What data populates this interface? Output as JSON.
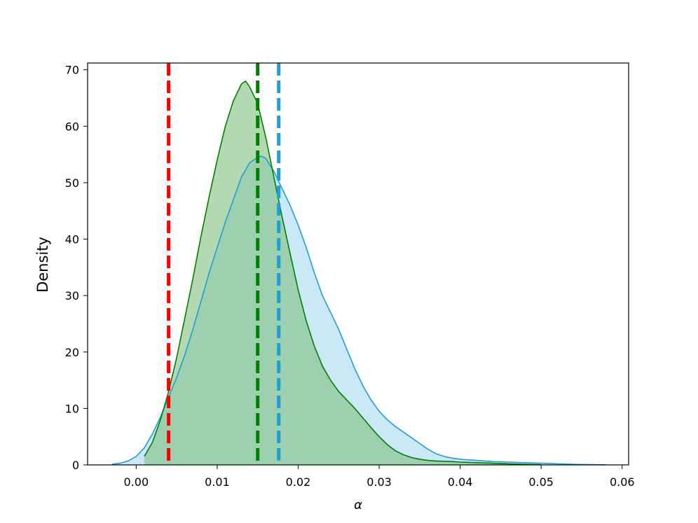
{
  "chart_data": {
    "type": "area",
    "xlabel": "α",
    "ylabel": "Density",
    "xlim": [
      -0.006,
      0.0608
    ],
    "ylim": [
      0,
      71.2
    ],
    "xticks": [
      "0.00",
      "0.01",
      "0.02",
      "0.03",
      "0.04",
      "0.05",
      "0.06"
    ],
    "yticks": [
      "0",
      "10",
      "20",
      "30",
      "40",
      "50",
      "60",
      "70"
    ],
    "xtick_values": [
      0,
      0.01,
      0.02,
      0.03,
      0.04,
      0.05,
      0.06
    ],
    "ytick_values": [
      0,
      10,
      20,
      30,
      40,
      50,
      60,
      70
    ],
    "grid": false,
    "legend": "none",
    "series": [
      {
        "color": "#1f9fd4",
        "fill": "#a8d8f0",
        "x": [
          -0.003,
          -0.002,
          -0.001,
          0.0,
          0.001,
          0.002,
          0.003,
          0.004,
          0.005,
          0.006,
          0.007,
          0.008,
          0.009,
          0.01,
          0.011,
          0.012,
          0.013,
          0.014,
          0.015,
          0.0155,
          0.016,
          0.017,
          0.018,
          0.019,
          0.02,
          0.021,
          0.022,
          0.023,
          0.024,
          0.025,
          0.026,
          0.027,
          0.028,
          0.029,
          0.03,
          0.031,
          0.032,
          0.033,
          0.034,
          0.035,
          0.036,
          0.037,
          0.038,
          0.039,
          0.04,
          0.042,
          0.044,
          0.046,
          0.048,
          0.05,
          0.052,
          0.054,
          0.056,
          0.058
        ],
        "y": [
          0.1,
          0.3,
          0.7,
          1.5,
          3.0,
          5.5,
          8.5,
          12.0,
          15.5,
          19.5,
          24.0,
          29.0,
          34.0,
          38.5,
          43.0,
          47.0,
          51.0,
          53.5,
          54.5,
          54.7,
          54.3,
          52.0,
          49.0,
          46.0,
          42.5,
          38.5,
          34.0,
          30.0,
          27.0,
          24.0,
          20.5,
          17.0,
          14.0,
          11.5,
          9.5,
          8.0,
          6.8,
          5.8,
          4.8,
          3.8,
          2.8,
          2.0,
          1.5,
          1.2,
          1.0,
          0.8,
          0.6,
          0.5,
          0.4,
          0.3,
          0.2,
          0.1,
          0.05,
          0.02
        ]
      },
      {
        "color": "#008000",
        "fill": "#7fc07f",
        "x": [
          0.001,
          0.002,
          0.003,
          0.004,
          0.005,
          0.006,
          0.007,
          0.008,
          0.009,
          0.01,
          0.011,
          0.012,
          0.013,
          0.0135,
          0.014,
          0.015,
          0.016,
          0.017,
          0.018,
          0.019,
          0.02,
          0.021,
          0.022,
          0.023,
          0.024,
          0.025,
          0.026,
          0.027,
          0.028,
          0.029,
          0.03,
          0.031,
          0.032,
          0.033,
          0.034,
          0.035,
          0.036,
          0.037,
          0.038,
          0.039,
          0.04,
          0.042,
          0.044,
          0.046,
          0.048,
          0.05
        ],
        "y": [
          1.5,
          4.0,
          8.0,
          13.0,
          19.0,
          26.0,
          33.0,
          40.5,
          47.5,
          54.0,
          60.0,
          64.5,
          67.5,
          68.0,
          67.0,
          64.0,
          58.0,
          51.0,
          44.0,
          37.5,
          31.0,
          25.5,
          21.0,
          17.5,
          15.0,
          13.0,
          11.5,
          10.0,
          8.3,
          6.6,
          5.0,
          3.6,
          2.5,
          1.8,
          1.3,
          1.0,
          0.8,
          0.7,
          0.65,
          0.6,
          0.5,
          0.4,
          0.3,
          0.2,
          0.1,
          0.05
        ]
      }
    ],
    "vlines": [
      {
        "x": 0.004,
        "color": "#ff0000"
      },
      {
        "x": 0.015,
        "color": "#008000"
      },
      {
        "x": 0.0176,
        "color": "#1f9fd4"
      }
    ]
  }
}
